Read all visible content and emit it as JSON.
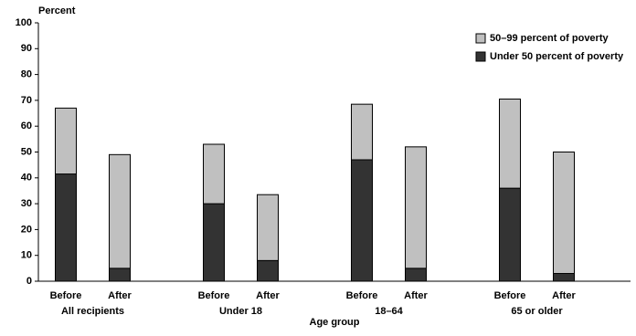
{
  "chart_data": {
    "type": "stacked-bar",
    "y_label": "Percent",
    "x_label": "Age group",
    "categories": [
      "Before",
      "After",
      "Before",
      "After",
      "Before",
      "After",
      "Before",
      "After"
    ],
    "groups": [
      "All recipients",
      "Under 18",
      "18–64",
      "65 or older"
    ],
    "series": [
      {
        "name": "Under 50 percent of poverty",
        "color": "#333333",
        "values": [
          41.5,
          5,
          30,
          8,
          47,
          5,
          36,
          3
        ]
      },
      {
        "name": "50–99 percent of poverty",
        "color": "#c0c0c0",
        "values": [
          25.5,
          44,
          23,
          25.5,
          21.5,
          47,
          34.5,
          47
        ]
      }
    ],
    "ylim": [
      0,
      100
    ],
    "yticks": [
      0,
      10,
      20,
      30,
      40,
      50,
      60,
      70,
      80,
      90,
      100
    ],
    "grid": false,
    "legend": "upper-right"
  }
}
